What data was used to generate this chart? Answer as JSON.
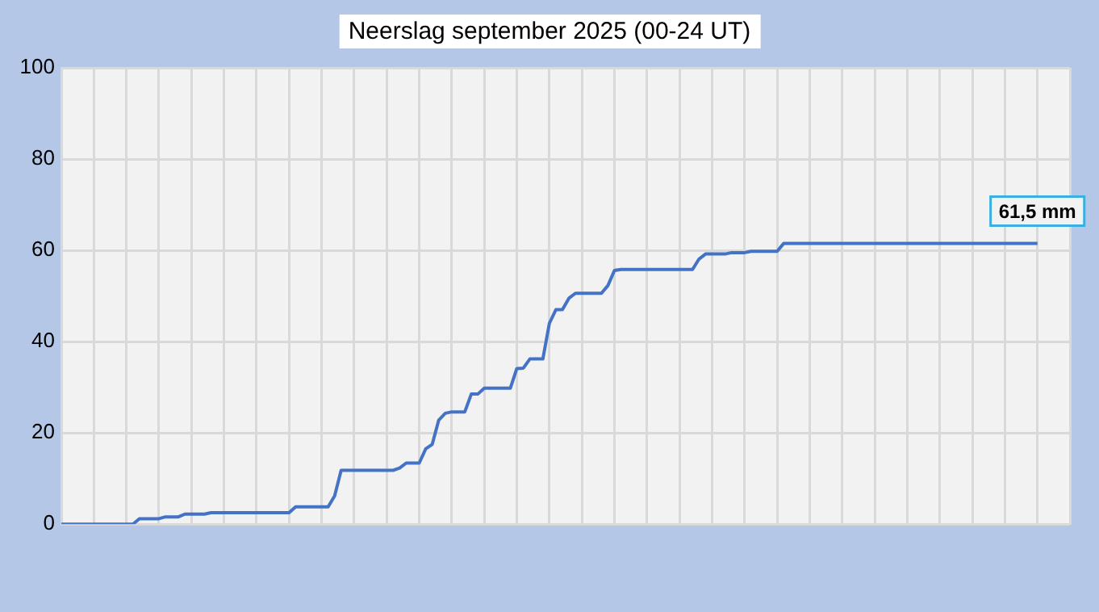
{
  "chart_data": {
    "type": "line",
    "title": "Neerslag september 2025 (00-24 UT)",
    "categories": [
      null,
      null,
      null,
      null,
      null,
      null,
      null,
      null,
      null,
      null,
      null,
      null,
      null,
      null,
      null,
      null,
      null,
      null,
      null,
      null,
      null,
      null,
      null,
      null,
      null,
      null,
      null,
      null,
      null,
      null,
      null,
      null,
      null,
      null,
      null,
      null,
      null,
      null,
      null,
      null,
      null,
      null,
      null,
      null,
      null,
      null,
      null,
      null,
      null,
      null,
      null,
      null,
      null,
      null,
      null,
      null,
      null,
      null,
      null,
      null,
      null,
      null,
      null,
      null,
      null,
      null,
      null,
      null,
      null,
      null,
      null,
      null,
      null,
      null,
      null,
      null,
      null,
      null,
      null,
      null,
      null,
      null,
      null,
      null,
      null,
      null,
      null,
      null,
      null,
      null,
      null,
      null,
      null,
      null,
      null,
      null,
      null,
      null,
      null,
      null,
      null,
      null,
      null,
      null,
      null,
      null,
      null,
      null,
      null,
      null,
      null,
      null,
      null,
      null,
      null,
      null,
      null,
      null,
      null,
      null,
      null,
      null,
      null,
      null,
      null,
      null,
      null,
      null,
      null,
      null,
      null,
      null,
      null,
      null,
      null,
      null,
      null,
      null,
      null,
      null,
      null,
      null,
      null,
      null,
      null,
      null,
      null,
      null,
      null,
      null,
      null,
      null,
      null,
      null,
      null,
      null
    ],
    "series": [
      {
        "color": "#4472c4",
        "values": [
          0,
          0,
          0,
          0,
          0,
          0,
          0,
          0,
          0,
          0,
          0,
          0,
          1.2,
          1.2,
          1.2,
          1.2,
          1.6,
          1.6,
          1.6,
          2.2,
          2.2,
          2.2,
          2.2,
          2.5,
          2.5,
          2.5,
          2.5,
          2.5,
          2.5,
          2.5,
          2.5,
          2.5,
          2.5,
          2.5,
          2.5,
          2.5,
          3.8,
          3.8,
          3.8,
          3.8,
          3.8,
          3.8,
          6.2,
          11.8,
          11.8,
          11.8,
          11.8,
          11.8,
          11.8,
          11.8,
          11.8,
          11.8,
          12.3,
          13.4,
          13.4,
          13.4,
          16.5,
          17.5,
          22.8,
          24.3,
          24.6,
          24.6,
          24.6,
          28.5,
          28.5,
          29.8,
          29.8,
          29.8,
          29.8,
          29.8,
          34.1,
          34.2,
          36.2,
          36.2,
          36.2,
          44.0,
          47.0,
          47.0,
          49.5,
          50.6,
          50.6,
          50.6,
          50.6,
          50.6,
          52.3,
          55.6,
          55.8,
          55.8,
          55.8,
          55.8,
          55.8,
          55.8,
          55.8,
          55.8,
          55.8,
          55.8,
          55.8,
          55.8,
          58.1,
          59.2,
          59.2,
          59.2,
          59.2,
          59.5,
          59.5,
          59.5,
          59.8,
          59.8,
          59.8,
          59.8,
          59.8,
          61.5,
          61.5,
          61.5,
          61.5,
          61.5,
          61.5,
          61.5,
          61.5,
          61.5,
          61.5,
          61.5,
          61.5,
          61.5,
          61.5,
          61.5,
          61.5,
          61.5,
          61.5,
          61.5,
          61.5,
          61.5,
          61.5,
          61.5,
          61.5,
          61.5,
          61.5,
          61.5,
          61.5,
          61.5,
          61.5,
          61.5,
          61.5,
          61.5,
          61.5,
          61.5,
          61.5,
          61.5,
          61.5,
          61.5,
          61.5,
          null,
          null,
          null,
          null,
          null
        ]
      }
    ],
    "ylim": [
      0,
      100
    ],
    "yticks": [
      0,
      20,
      40,
      60,
      80,
      100
    ],
    "grid": true,
    "legend": false,
    "marker": "none",
    "line_style": "solid",
    "annotations": [
      {
        "text": "61,5 mm",
        "y": 61.5
      }
    ]
  }
}
